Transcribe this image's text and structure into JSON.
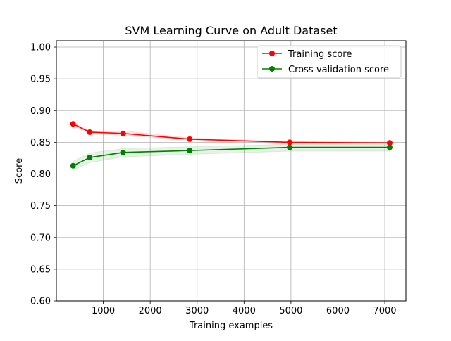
{
  "chart_data": {
    "type": "line",
    "title": "SVM Learning Curve on Adult Dataset",
    "xlabel": "Training examples",
    "ylabel": "Score",
    "xlim": [
      0,
      7450
    ],
    "ylim": [
      0.6,
      1.01
    ],
    "xticks": [
      1000,
      2000,
      3000,
      4000,
      5000,
      6000,
      7000
    ],
    "xtick_labels": [
      "1000",
      "2000",
      "3000",
      "4000",
      "5000",
      "6000",
      "7000"
    ],
    "yticks": [
      0.6,
      0.65,
      0.7,
      0.75,
      0.8,
      0.85,
      0.9,
      0.95,
      1.0
    ],
    "ytick_labels": [
      "0.60",
      "0.65",
      "0.70",
      "0.75",
      "0.80",
      "0.85",
      "0.90",
      "0.95",
      "1.00"
    ],
    "grid": true,
    "legend_position": "top-right",
    "x": [
      355,
      710,
      1421,
      2842,
      4973,
      7104
    ],
    "series": [
      {
        "name": "Training score",
        "color": "#ff0000",
        "band_color": "#ff0000",
        "values": [
          0.879,
          0.866,
          0.864,
          0.855,
          0.85,
          0.849
        ],
        "band": [
          [
            0.877,
            0.881
          ],
          [
            0.864,
            0.868
          ],
          [
            0.861,
            0.868
          ],
          [
            0.854,
            0.857
          ],
          [
            0.849,
            0.851
          ],
          [
            0.848,
            0.85
          ]
        ]
      },
      {
        "name": "Cross-validation score",
        "color": "#008000",
        "band_color": "#008000",
        "values": [
          0.813,
          0.826,
          0.834,
          0.837,
          0.842,
          0.842
        ],
        "band": [
          [
            0.806,
            0.82
          ],
          [
            0.818,
            0.833
          ],
          [
            0.827,
            0.84
          ],
          [
            0.831,
            0.843
          ],
          [
            0.836,
            0.847
          ],
          [
            0.836,
            0.847
          ]
        ]
      }
    ]
  }
}
